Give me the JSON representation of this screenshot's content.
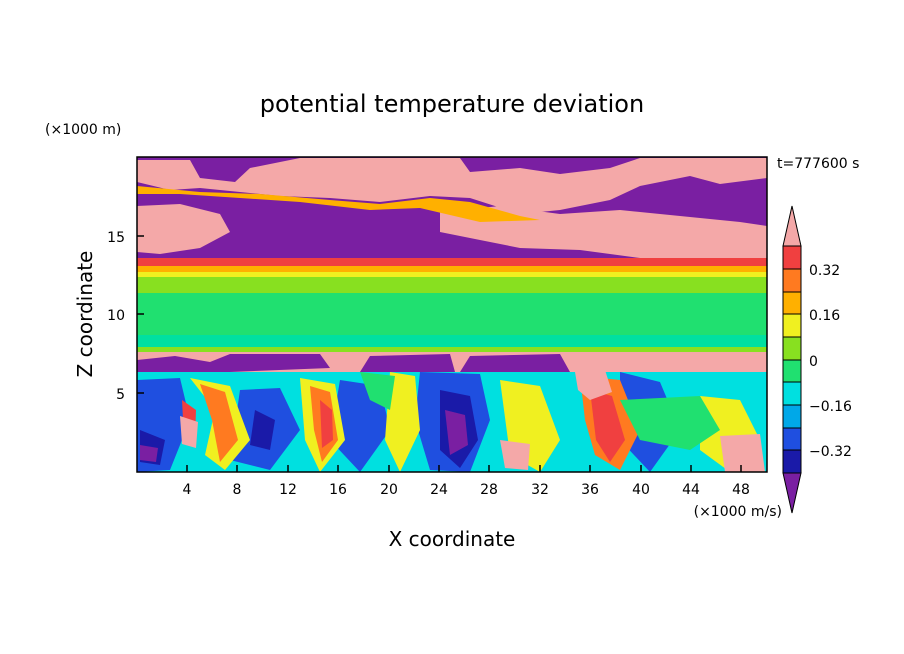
{
  "chart_data": {
    "type": "heatmap",
    "title": "potential temperature deviation",
    "time_label": "t=777600 s",
    "xlabel": "X coordinate",
    "ylabel": "Z coordinate",
    "x_units": "(×1000 m/s)",
    "y_units": "(×1000 m)",
    "xlim": [
      0,
      50
    ],
    "ylim": [
      0,
      20
    ],
    "x_ticks": [
      "4",
      "8",
      "12",
      "16",
      "20",
      "24",
      "28",
      "32",
      "36",
      "40",
      "44",
      "48"
    ],
    "y_ticks": [
      "5",
      "10",
      "15"
    ],
    "colorbar": {
      "levels": [
        -0.4,
        -0.32,
        -0.24,
        -0.16,
        -0.08,
        0,
        0.08,
        0.16,
        0.24,
        0.32,
        0.4
      ],
      "tick_labels": [
        "0.32",
        "0.16",
        "0",
        "−0.16",
        "−0.32"
      ],
      "colors": [
        "#7a1fa2",
        "#1a1aa8",
        "#1f4fe0",
        "#00a8e8",
        "#00e0e0",
        "#20e070",
        "#88e020",
        "#f0f020",
        "#ffb000",
        "#ff7a20",
        "#f04040",
        "#f4a8a8"
      ]
    },
    "field_layers": [
      {
        "name": "upper pink band",
        "z_range": [
          16.5,
          19.5
        ],
        "value": 0.45
      },
      {
        "name": "upper purple band",
        "z_range": [
          14,
          17
        ],
        "value": -0.45
      },
      {
        "name": "tropopause red layer",
        "z_range": [
          13,
          13.5
        ],
        "value": 0.36
      },
      {
        "name": "mid green layer",
        "z_range": [
          8,
          12.5
        ],
        "value": -0.04
      },
      {
        "name": "pink inversion layer",
        "z_range": [
          6.4,
          7.6
        ],
        "value": 0.45
      },
      {
        "name": "lower turbulent layer",
        "z_range": [
          0,
          6.4
        ],
        "value": "mixed"
      }
    ]
  }
}
